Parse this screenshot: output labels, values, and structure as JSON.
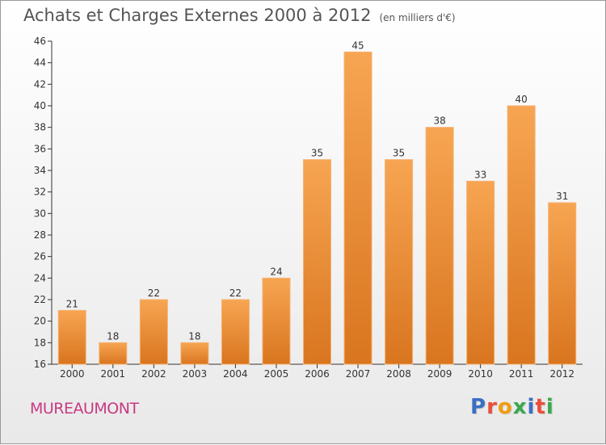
{
  "title": "Achats et Charges Externes 2000 à 2012",
  "unit": "(en milliers d'€)",
  "commune": "MUREAUMONT",
  "logo": {
    "text": "Proxiti",
    "letters": [
      {
        "ch": "P",
        "color": "#3a6fc4"
      },
      {
        "ch": "r",
        "color": "#e94e3c"
      },
      {
        "ch": "o",
        "color": "#f39c12"
      },
      {
        "ch": "x",
        "color": "#3aa84e"
      },
      {
        "ch": "i",
        "color": "#3a6fc4"
      },
      {
        "ch": "t",
        "color": "#e94e3c"
      },
      {
        "ch": "i",
        "color": "#3aa84e"
      }
    ]
  },
  "colors": {
    "bar_light": "#f7a552",
    "bar_dark": "#d9751f",
    "axis": "#333333",
    "grid": "#c8c8c8",
    "commune": "#c83a84"
  },
  "chart_data": {
    "type": "bar",
    "categories": [
      "2000",
      "2001",
      "2002",
      "2003",
      "2004",
      "2005",
      "2006",
      "2007",
      "2008",
      "2009",
      "2010",
      "2011",
      "2012"
    ],
    "values": [
      21,
      18,
      22,
      18,
      22,
      24,
      35,
      45,
      35,
      38,
      33,
      40,
      31
    ],
    "ylim": [
      16,
      46
    ],
    "yticks": [
      16,
      18,
      20,
      22,
      24,
      26,
      28,
      30,
      32,
      34,
      36,
      38,
      40,
      42,
      44,
      46
    ],
    "grid": false,
    "data_labels": true
  }
}
